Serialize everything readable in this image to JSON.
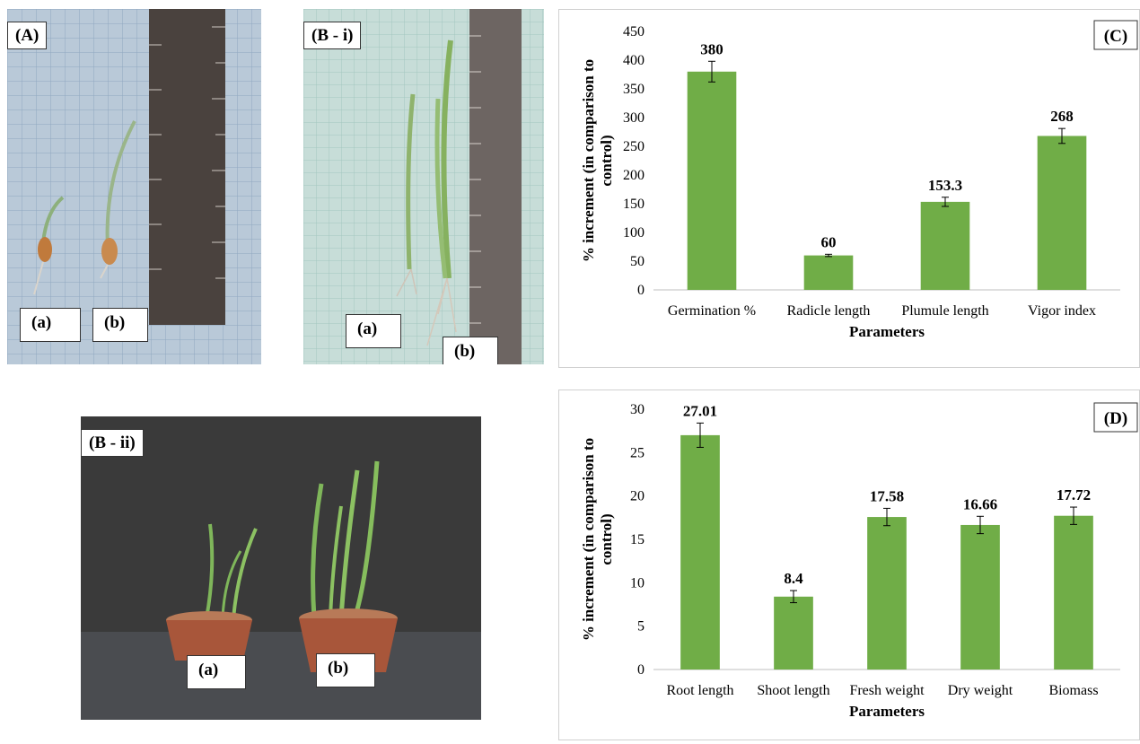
{
  "panels": {
    "A": {
      "label": "(A)",
      "sub_a": "(a)",
      "sub_b": "(b)"
    },
    "Bi": {
      "label": "(B - i)",
      "sub_a": "(a)",
      "sub_b": "(b)"
    },
    "Bii": {
      "label": "(B - ii)",
      "sub_a": "(a)",
      "sub_b": "(b)"
    }
  },
  "chart_data": [
    {
      "id": "C",
      "panel_label": "(C)",
      "type": "bar",
      "categories": [
        "Germination %",
        "Radicle length",
        "Plumule length",
        "Vigor index"
      ],
      "values": [
        380,
        60,
        153.3,
        268
      ],
      "data_labels": [
        "380",
        "60",
        "153.3",
        "268"
      ],
      "error": [
        18,
        2,
        8,
        13
      ],
      "ylim": [
        0,
        450
      ],
      "yticks": [
        0,
        50,
        100,
        150,
        200,
        250,
        300,
        350,
        400,
        450
      ],
      "xlabel": "Parameters",
      "ylabel_line1": "% increment (in comparison to",
      "ylabel_line2": "control)",
      "bar_color": "#70ad47",
      "grid": false
    },
    {
      "id": "D",
      "panel_label": "(D)",
      "type": "bar",
      "categories": [
        "Root length",
        "Shoot length",
        "Fresh weight",
        "Dry weight",
        "Biomass"
      ],
      "values": [
        27.01,
        8.4,
        17.58,
        16.66,
        17.72
      ],
      "data_labels": [
        "27.01",
        "8.4",
        "17.58",
        "16.66",
        "17.72"
      ],
      "error": [
        1.4,
        0.7,
        1.0,
        1.0,
        1.0
      ],
      "ylim": [
        0,
        30
      ],
      "yticks": [
        0,
        5,
        10,
        15,
        20,
        25,
        30
      ],
      "xlabel": "Parameters",
      "ylabel_line1": "% increment (in comparison to",
      "ylabel_line2": "control)",
      "bar_color": "#70ad47",
      "grid": false
    }
  ]
}
